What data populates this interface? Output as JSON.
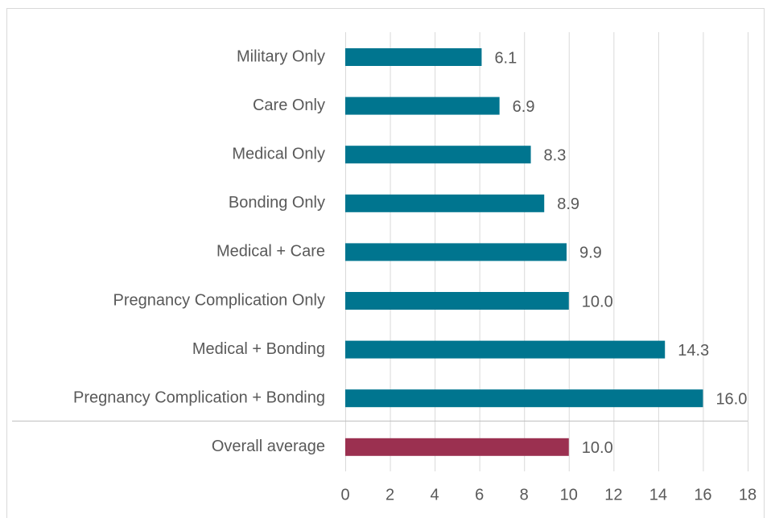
{
  "chart_data": {
    "type": "bar",
    "orientation": "horizontal",
    "categories": [
      "Military Only",
      "Care Only",
      "Medical Only",
      "Bonding Only",
      "Medical + Care",
      "Pregnancy Complication Only",
      "Medical + Bonding",
      "Pregnancy Complication + Bonding",
      "Overall average"
    ],
    "values": [
      6.1,
      6.9,
      8.3,
      8.9,
      9.9,
      10.0,
      14.3,
      16.0,
      10.0
    ],
    "value_labels": [
      "6.1",
      "6.9",
      "8.3",
      "8.9",
      "9.9",
      "10.0",
      "14.3",
      "16.0",
      "10.0"
    ],
    "colors": [
      "#00758f",
      "#00758f",
      "#00758f",
      "#00758f",
      "#00758f",
      "#00758f",
      "#00758f",
      "#00758f",
      "#9b3050"
    ],
    "xlim": [
      0,
      18
    ],
    "xticks": [
      0,
      2,
      4,
      6,
      8,
      10,
      12,
      14,
      16,
      18
    ],
    "grid": true
  }
}
